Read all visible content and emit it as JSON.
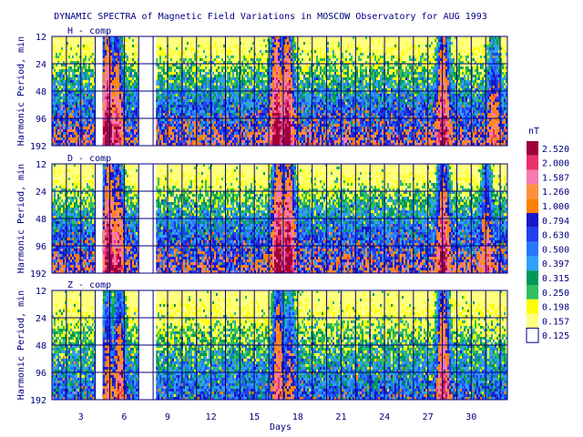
{
  "chart_data": {
    "type": "heatmap",
    "title": "DYNAMIC SPECTRA of Magnetic Field Variations in MOSCOW Observatory for AUG 1993",
    "xlabel": "Days",
    "ylabel": "Harmonic Period, min",
    "x_ticks": [
      3,
      6,
      9,
      12,
      15,
      18,
      21,
      24,
      27,
      30
    ],
    "xlim": [
      1,
      32.5
    ],
    "y_ticks": [
      12,
      24,
      48,
      96,
      192
    ],
    "y_scale": "log2",
    "ylim": [
      12,
      192
    ],
    "grid": true,
    "legend": {
      "position": "right",
      "unit": "nT",
      "levels": [
        2.52,
        2.0,
        1.587,
        1.26,
        1.0,
        0.794,
        0.63,
        0.5,
        0.397,
        0.315,
        0.25,
        0.198,
        0.157,
        0.125
      ],
      "labels": [
        "2.520",
        "2.000",
        "1.587",
        "1.260",
        "1.000",
        "0.794",
        "0.630",
        "0.500",
        "0.397",
        "0.315",
        "0.250",
        "0.198",
        "0.157",
        "0.125"
      ],
      "colors": [
        "#a0003c",
        "#e8306c",
        "#f878b0",
        "#ff9040",
        "#ff8000",
        "#1818c8",
        "#2040f0",
        "#2878ff",
        "#30a0ff",
        "#009858",
        "#30c060",
        "#ffff00",
        "#ffff80",
        "#ffffff"
      ]
    },
    "panels": [
      {
        "label": "H - comp",
        "data_gaps_days": [
          [
            4.0,
            4.5
          ],
          [
            7.0,
            8.2
          ]
        ],
        "activity_events": [
          {
            "day": 4.8,
            "peak_level": 2.52
          },
          {
            "day": 5.4,
            "peak_level": 1.587
          },
          {
            "day": 16.5,
            "peak_level": 2.52
          },
          {
            "day": 17.2,
            "peak_level": 2.52
          },
          {
            "day": 28.0,
            "peak_level": 2.0
          },
          {
            "day": 31.5,
            "peak_level": 0.794
          }
        ]
      },
      {
        "label": "D - comp",
        "data_gaps_days": [
          [
            4.0,
            4.5
          ],
          [
            7.0,
            8.2
          ]
        ],
        "activity_events": [
          {
            "day": 4.9,
            "peak_level": 2.52
          },
          {
            "day": 5.5,
            "peak_level": 1.587
          },
          {
            "day": 16.6,
            "peak_level": 2.52
          },
          {
            "day": 17.3,
            "peak_level": 2.52
          },
          {
            "day": 28.0,
            "peak_level": 2.0
          },
          {
            "day": 31.0,
            "peak_level": 1.0
          }
        ]
      },
      {
        "label": "Z - comp",
        "data_gaps_days": [
          [
            4.0,
            4.5
          ],
          [
            7.0,
            8.2
          ]
        ],
        "activity_events": [
          {
            "day": 4.8,
            "peak_level": 1.0
          },
          {
            "day": 5.6,
            "peak_level": 1.26
          },
          {
            "day": 16.6,
            "peak_level": 1.587
          },
          {
            "day": 17.4,
            "peak_level": 0.794
          },
          {
            "day": 28.0,
            "peak_level": 2.0
          }
        ]
      }
    ]
  }
}
